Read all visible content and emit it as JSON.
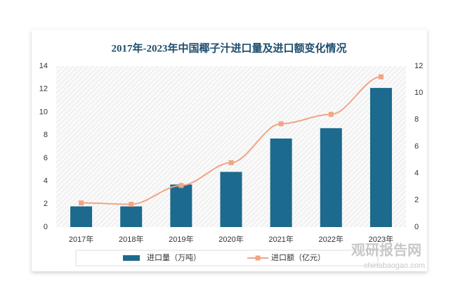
{
  "chart_data": {
    "type": "bar_line",
    "title": "2017年-2023年中国椰子汁进口量及进口额变化情况",
    "categories": [
      "2017年",
      "2018年",
      "2019年",
      "2020年",
      "2021年",
      "2022年",
      "2023年"
    ],
    "series": [
      {
        "name": "进口量（万吨）",
        "type": "bar",
        "color": "#1c6a8d",
        "values": [
          1.8,
          1.8,
          3.7,
          4.8,
          7.7,
          8.6,
          12.1
        ]
      },
      {
        "name": "进口额（亿元）",
        "type": "line",
        "axis": "y2",
        "color": "#f0a585",
        "values": [
          1.8,
          1.7,
          3.1,
          4.8,
          7.7,
          8.4,
          11.2
        ]
      }
    ],
    "ylim": [
      0,
      14
    ],
    "yticks": [
      0,
      2,
      4,
      6,
      8,
      10,
      12,
      14
    ],
    "y2lim": [
      0,
      12
    ],
    "y2ticks": [
      0,
      2,
      4,
      6,
      8,
      10,
      12
    ],
    "watermark": {
      "name": "观研报告网",
      "url": "chinabaogao.com"
    }
  }
}
